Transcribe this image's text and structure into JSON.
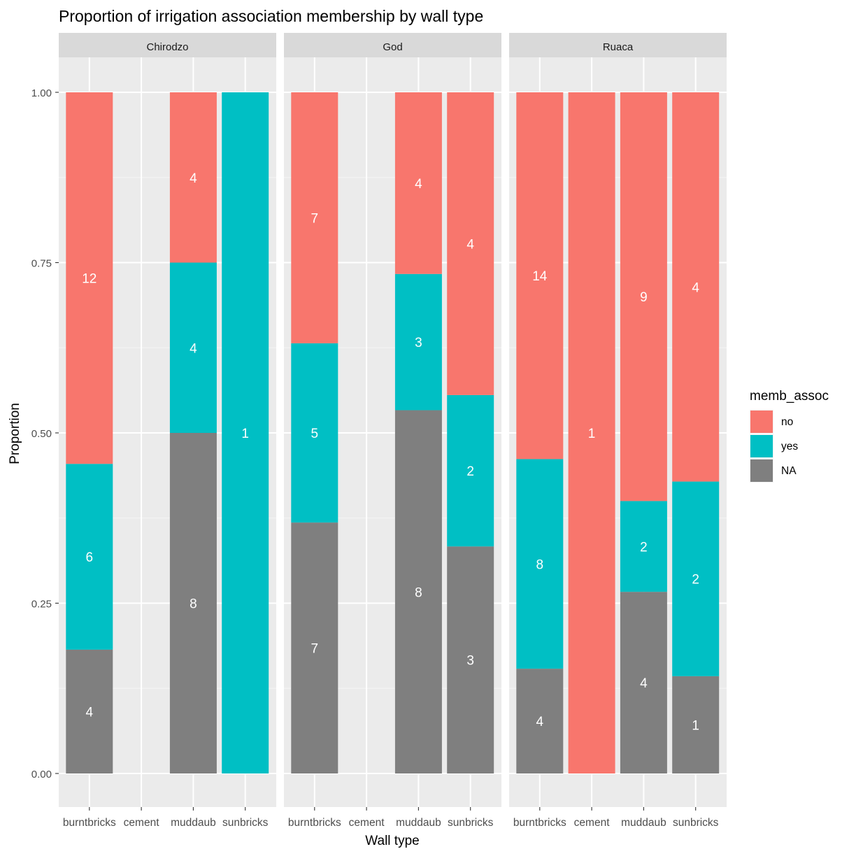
{
  "chart_data": {
    "type": "bar",
    "stacked": true,
    "position": "fill",
    "title": "Proportion of irrigation association membership by wall type",
    "xlabel": "Wall type",
    "ylabel": "Proportion",
    "ylim": [
      0,
      1
    ],
    "y_ticks": [
      {
        "value": 0,
        "label": "0.00"
      },
      {
        "value": 0.25,
        "label": "0.25"
      },
      {
        "value": 0.5,
        "label": "0.50"
      },
      {
        "value": 0.75,
        "label": "0.75"
      },
      {
        "value": 1,
        "label": "1.00"
      }
    ],
    "categories": [
      "burntbricks",
      "cement",
      "muddaub",
      "sunbricks"
    ],
    "legend": {
      "title": "memb_assoc",
      "placement": "right",
      "entries": [
        {
          "key": "no",
          "label": "no",
          "color": "#F8766D"
        },
        {
          "key": "yes",
          "label": "yes",
          "color": "#00BFC4"
        },
        {
          "key": "NA",
          "label": "NA",
          "color": "#7F7F7F"
        }
      ]
    },
    "stack_order_bottom_to_top": [
      "NA",
      "yes",
      "no"
    ],
    "facets": [
      {
        "name": "Chirodzo",
        "counts": {
          "burntbricks": {
            "no": 12,
            "yes": 6,
            "NA": 4
          },
          "cement": {},
          "muddaub": {
            "no": 4,
            "yes": 4,
            "NA": 8
          },
          "sunbricks": {
            "yes": 1
          }
        }
      },
      {
        "name": "God",
        "counts": {
          "burntbricks": {
            "no": 7,
            "yes": 5,
            "NA": 7
          },
          "cement": {},
          "muddaub": {
            "no": 4,
            "yes": 3,
            "NA": 8
          },
          "sunbricks": {
            "no": 4,
            "yes": 2,
            "NA": 3
          }
        }
      },
      {
        "name": "Ruaca",
        "counts": {
          "burntbricks": {
            "no": 14,
            "yes": 8,
            "NA": 4
          },
          "cement": {
            "no": 1
          },
          "muddaub": {
            "no": 9,
            "yes": 2,
            "NA": 4
          },
          "sunbricks": {
            "no": 4,
            "yes": 2,
            "NA": 1
          }
        }
      }
    ]
  }
}
